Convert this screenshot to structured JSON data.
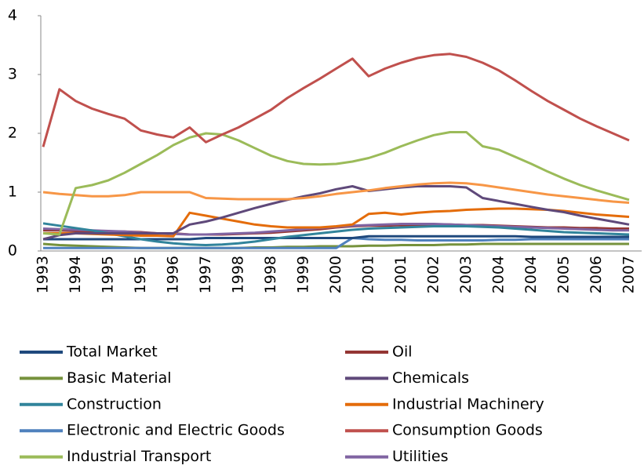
{
  "chart_data": {
    "type": "line",
    "categories": [
      "1993",
      null,
      "1994",
      null,
      "1995",
      null,
      "1995",
      null,
      "1996",
      null,
      "1997",
      null,
      "1998",
      null,
      "1998",
      null,
      "1999",
      null,
      "2000",
      null,
      "2001",
      null,
      "2001",
      null,
      "2002",
      null,
      "2003",
      null,
      "2004",
      null,
      "2004",
      null,
      "2005",
      null,
      "2006",
      null,
      "2007"
    ],
    "ylim": [
      0,
      4
    ],
    "yticks": [
      0,
      1,
      2,
      3,
      4
    ],
    "grid": false,
    "series": [
      {
        "name": "Total Market",
        "color": "#1f497d",
        "values": [
          0.2,
          0.2,
          0.2,
          0.2,
          0.2,
          0.2,
          0.2,
          0.2,
          0.2,
          0.2,
          0.22,
          0.22,
          0.22,
          0.22,
          0.22,
          0.22,
          0.22,
          0.22,
          0.22,
          0.22,
          0.25,
          0.25,
          0.25,
          0.25,
          0.25,
          0.25,
          0.25,
          0.25,
          0.25,
          0.25,
          0.24,
          0.24,
          0.24,
          0.24,
          0.24,
          0.24,
          0.24
        ]
      },
      {
        "name": "Oil",
        "color": "#943634",
        "values": [
          0.35,
          0.35,
          0.34,
          0.34,
          0.33,
          0.33,
          0.32,
          0.3,
          0.3,
          0.28,
          0.28,
          0.28,
          0.29,
          0.3,
          0.31,
          0.33,
          0.35,
          0.37,
          0.4,
          0.42,
          0.43,
          0.43,
          0.44,
          0.44,
          0.45,
          0.45,
          0.44,
          0.44,
          0.43,
          0.42,
          0.41,
          0.4,
          0.4,
          0.39,
          0.39,
          0.38,
          0.38
        ]
      },
      {
        "name": "Basic Material",
        "color": "#76923c",
        "values": [
          0.12,
          0.1,
          0.09,
          0.08,
          0.07,
          0.06,
          0.05,
          0.05,
          0.05,
          0.05,
          0.05,
          0.05,
          0.05,
          0.06,
          0.06,
          0.07,
          0.07,
          0.08,
          0.08,
          0.08,
          0.09,
          0.09,
          0.1,
          0.1,
          0.1,
          0.11,
          0.11,
          0.12,
          0.12,
          0.12,
          0.12,
          0.12,
          0.12,
          0.12,
          0.12,
          0.12,
          0.12
        ]
      },
      {
        "name": "Chemicals",
        "color": "#5f497a",
        "values": [
          0.2,
          0.27,
          0.3,
          0.3,
          0.3,
          0.3,
          0.3,
          0.3,
          0.3,
          0.45,
          0.5,
          0.57,
          0.65,
          0.73,
          0.8,
          0.87,
          0.93,
          0.98,
          1.05,
          1.1,
          1.02,
          1.05,
          1.08,
          1.1,
          1.1,
          1.1,
          1.08,
          0.9,
          0.85,
          0.8,
          0.75,
          0.7,
          0.66,
          0.6,
          0.55,
          0.5,
          0.45
        ]
      },
      {
        "name": "Construction",
        "color": "#31849b",
        "values": [
          0.47,
          0.43,
          0.39,
          0.35,
          0.3,
          0.25,
          0.2,
          0.16,
          0.13,
          0.11,
          0.1,
          0.11,
          0.13,
          0.16,
          0.2,
          0.24,
          0.27,
          0.3,
          0.33,
          0.36,
          0.38,
          0.39,
          0.4,
          0.41,
          0.42,
          0.42,
          0.42,
          0.41,
          0.4,
          0.38,
          0.36,
          0.34,
          0.32,
          0.31,
          0.3,
          0.29,
          0.28
        ]
      },
      {
        "name": "Industrial Machinery",
        "color": "#e46c0a",
        "values": [
          0.3,
          0.3,
          0.3,
          0.29,
          0.28,
          0.27,
          0.26,
          0.26,
          0.25,
          0.65,
          0.6,
          0.55,
          0.5,
          0.45,
          0.42,
          0.4,
          0.4,
          0.4,
          0.42,
          0.45,
          0.63,
          0.65,
          0.62,
          0.65,
          0.67,
          0.68,
          0.7,
          0.71,
          0.72,
          0.72,
          0.71,
          0.7,
          0.68,
          0.65,
          0.62,
          0.6,
          0.58
        ]
      },
      {
        "name": "Electronic and Electric Goods",
        "color": "#4f81bd",
        "values": [
          0.05,
          0.05,
          0.05,
          0.05,
          0.05,
          0.05,
          0.05,
          0.05,
          0.05,
          0.05,
          0.05,
          0.05,
          0.05,
          0.05,
          0.05,
          0.05,
          0.05,
          0.05,
          0.05,
          0.22,
          0.2,
          0.19,
          0.19,
          0.18,
          0.18,
          0.18,
          0.18,
          0.18,
          0.19,
          0.19,
          0.2,
          0.2,
          0.2,
          0.2,
          0.2,
          0.2,
          0.2
        ]
      },
      {
        "name": "Consumption Goods",
        "color": "#c0504d",
        "values": [
          1.77,
          2.75,
          2.55,
          2.42,
          2.33,
          2.25,
          2.05,
          1.98,
          1.93,
          2.1,
          1.85,
          1.98,
          2.1,
          2.25,
          2.4,
          2.6,
          2.77,
          2.93,
          3.1,
          3.27,
          2.97,
          3.1,
          3.2,
          3.28,
          3.33,
          3.35,
          3.3,
          3.2,
          3.07,
          2.9,
          2.72,
          2.55,
          2.4,
          2.25,
          2.12,
          2.0,
          1.88
        ]
      },
      {
        "name": "Industrial Transport",
        "color": "#9bbb59",
        "values": [
          0.3,
          0.28,
          1.07,
          1.12,
          1.2,
          1.33,
          1.48,
          1.63,
          1.8,
          1.93,
          2.0,
          1.98,
          1.88,
          1.75,
          1.62,
          1.53,
          1.48,
          1.47,
          1.48,
          1.52,
          1.58,
          1.67,
          1.78,
          1.88,
          1.97,
          2.02,
          2.02,
          1.78,
          1.72,
          1.6,
          1.48,
          1.35,
          1.23,
          1.12,
          1.03,
          0.95,
          0.87
        ]
      },
      {
        "name": "Utilities",
        "color": "#8064a2",
        "values": [
          0.38,
          0.37,
          0.36,
          0.35,
          0.34,
          0.33,
          0.31,
          0.3,
          0.29,
          0.28,
          0.28,
          0.29,
          0.3,
          0.31,
          0.33,
          0.35,
          0.37,
          0.39,
          0.41,
          0.43,
          0.44,
          0.45,
          0.46,
          0.46,
          0.46,
          0.45,
          0.44,
          0.43,
          0.42,
          0.41,
          0.4,
          0.39,
          0.38,
          0.37,
          0.36,
          0.35,
          0.35
        ]
      },
      {
        "color": "#f79646",
        "values": [
          1.0,
          0.97,
          0.95,
          0.93,
          0.93,
          0.95,
          1.0,
          1.0,
          1.0,
          1.0,
          0.9,
          0.89,
          0.88,
          0.88,
          0.88,
          0.88,
          0.9,
          0.93,
          0.97,
          1.0,
          1.03,
          1.07,
          1.1,
          1.13,
          1.15,
          1.16,
          1.15,
          1.12,
          1.08,
          1.04,
          1.0,
          0.96,
          0.93,
          0.9,
          0.87,
          0.84,
          0.82
        ]
      }
    ]
  }
}
